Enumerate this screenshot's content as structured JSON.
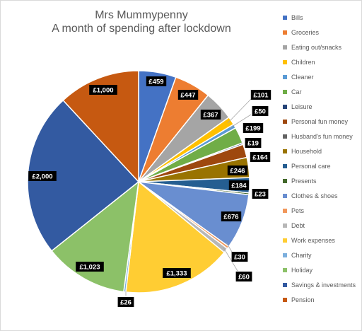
{
  "chart_data": {
    "type": "pie",
    "title": "Mrs Mummypenny",
    "subtitle": "A month of spending after lockdown",
    "legend_position": "right",
    "slices": [
      {
        "label": "Bills",
        "value": 459,
        "display": "£459",
        "color": "#4472C4"
      },
      {
        "label": "Groceries",
        "value": 447,
        "display": "£447",
        "color": "#ED7D31"
      },
      {
        "label": "Eating out/snacks",
        "value": 367,
        "display": "£367",
        "color": "#A5A5A5"
      },
      {
        "label": "Children",
        "value": 101,
        "display": "£101",
        "color": "#FFC000"
      },
      {
        "label": "Cleaner",
        "value": 50,
        "display": "£50",
        "color": "#5B9BD5"
      },
      {
        "label": "Car",
        "value": 199,
        "display": "£199",
        "color": "#70AD47"
      },
      {
        "label": "Leisure",
        "value": 19,
        "display": "£19",
        "color": "#264478"
      },
      {
        "label": "Personal fun money",
        "value": 164,
        "display": "£164",
        "color": "#9E480E"
      },
      {
        "label": "Husband's fun money",
        "value": 0,
        "display": "",
        "color": "#636363"
      },
      {
        "label": "Household",
        "value": 246,
        "display": "£246",
        "color": "#997300"
      },
      {
        "label": "Personal care",
        "value": 184,
        "display": "£184",
        "color": "#255E91"
      },
      {
        "label": "Presents",
        "value": 23,
        "display": "£23",
        "color": "#43682B"
      },
      {
        "label": "Clothes & shoes",
        "value": 676,
        "display": "£676",
        "color": "#698ED0"
      },
      {
        "label": "Pets",
        "value": 30,
        "display": "£30",
        "color": "#F1975A"
      },
      {
        "label": "Debt",
        "value": 60,
        "display": "£60",
        "color": "#B7B7B7"
      },
      {
        "label": "Work expenses",
        "value": 1333,
        "display": "£1,333",
        "color": "#FFCD33"
      },
      {
        "label": "Charity",
        "value": 26,
        "display": "£26",
        "color": "#7CAFDD"
      },
      {
        "label": "Holiday",
        "value": 1023,
        "display": "£1,023",
        "color": "#8CC168"
      },
      {
        "label": "Savings & investments",
        "value": 2000,
        "display": "£2,000",
        "color": "#335AA1"
      },
      {
        "label": "Pension",
        "value": 1000,
        "display": "£1,000",
        "color": "#C65911"
      }
    ]
  }
}
